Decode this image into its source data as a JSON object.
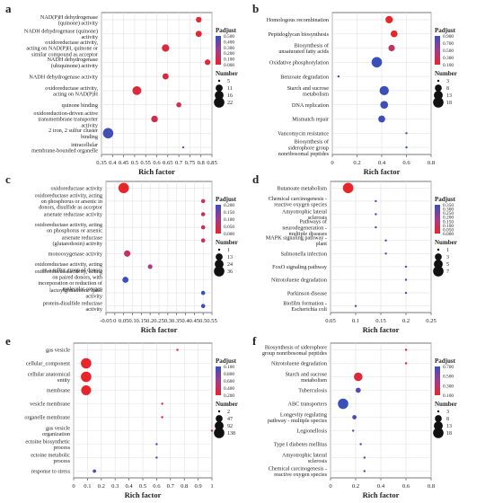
{
  "figure": {
    "panels_layout": [
      [
        "a",
        "b"
      ],
      [
        "c",
        "d"
      ],
      [
        "e",
        "f"
      ]
    ]
  },
  "chart_data": [
    {
      "panel": "a",
      "type": "scatter",
      "xlabel": "Rich factor",
      "xticks": [
        0.35,
        0.4,
        0.45,
        0.5,
        0.55,
        0.6,
        0.65,
        0.7,
        0.75,
        0.8,
        0.85
      ],
      "xtick_labels": [
        "0.35",
        "0.4",
        "0.45",
        "0.5",
        "0.55",
        "0.6",
        "0.65",
        "0.7",
        "0.75",
        "0.8",
        "0.85"
      ],
      "xlim": [
        0.35,
        0.85
      ],
      "categories": [
        "NAD(P)H dehydrogenase (quinone) activity",
        "NADH dehydrogenase (quinone) activity",
        "oxidoreductase activity, acting on NAD(P)H, quinone or similar compound as acceptor",
        "NADH dehydrogenase (ubiquinone) activity",
        "NADH dehydrogenase activity",
        "oxidoreductase activity, acting on NAD(P)H",
        "quinone binding",
        "oxidoreduction-driven active transmembrane transporter activity",
        "2 iron, 2 sulfur cluster binding",
        "intracellular membrane-bounded organelle"
      ],
      "points": [
        {
          "x": 0.79,
          "padj": 0.02,
          "number": 8
        },
        {
          "x": 0.79,
          "padj": 0.03,
          "number": 9
        },
        {
          "x": 0.64,
          "padj": 0.05,
          "number": 12
        },
        {
          "x": 0.83,
          "padj": 0.04,
          "number": 8
        },
        {
          "x": 0.64,
          "padj": 0.06,
          "number": 9
        },
        {
          "x": 0.51,
          "padj": 0.05,
          "number": 16
        },
        {
          "x": 0.7,
          "padj": 0.08,
          "number": 7
        },
        {
          "x": 0.59,
          "padj": 0.09,
          "number": 10
        },
        {
          "x": 0.38,
          "padj": 0.48,
          "number": 22
        },
        {
          "x": 0.72,
          "padj": 0.3,
          "number": 3
        }
      ],
      "legend": {
        "color_title": "Padjust",
        "color_ticks": [
          "0.500",
          "0.400",
          "0.300",
          "0.200",
          "0.100",
          "0.000"
        ],
        "color_range": [
          0,
          0.5
        ],
        "size_title": "Number",
        "size_values": [
          5,
          11,
          16,
          22
        ]
      }
    },
    {
      "panel": "b",
      "type": "scatter",
      "xlabel": "Rich factor",
      "xticks": [
        0,
        0.2,
        0.4,
        0.6,
        0.8
      ],
      "xtick_labels": [
        "0",
        "0.2",
        "0.4",
        "0.6",
        "0.8"
      ],
      "xlim": [
        0,
        0.8
      ],
      "categories": [
        "Homologous recombination",
        "Peptidoglycan biosynthesis",
        "Biosynthesis of unsaturated fatty acids",
        "Oxidative phosphorylation",
        "Benzoate degradation",
        "Starch and sucrose metabolism",
        "DNA replication",
        "Mismatch repair",
        "Vancomycin resistance",
        "Biosynthesis of siderophore group nonribosomal peptides"
      ],
      "points": [
        {
          "x": 0.46,
          "padj": 0.05,
          "number": 9
        },
        {
          "x": 0.5,
          "padj": 0.08,
          "number": 8
        },
        {
          "x": 0.48,
          "padj": 0.3,
          "number": 7
        },
        {
          "x": 0.36,
          "padj": 0.9,
          "number": 18
        },
        {
          "x": 0.05,
          "padj": 0.9,
          "number": 3
        },
        {
          "x": 0.42,
          "padj": 0.9,
          "number": 14
        },
        {
          "x": 0.42,
          "padj": 0.88,
          "number": 10
        },
        {
          "x": 0.4,
          "padj": 0.88,
          "number": 8
        },
        {
          "x": 0.6,
          "padj": 0.85,
          "number": 3
        },
        {
          "x": 0.6,
          "padj": 0.85,
          "number": 3
        }
      ],
      "legend": {
        "color_title": "Padjust",
        "color_ticks": [
          "0.900",
          "0.700",
          "0.500",
          "0.300",
          "0.100"
        ],
        "color_range": [
          0.1,
          0.9
        ],
        "size_title": "Number",
        "size_values": [
          3,
          8,
          13,
          18
        ]
      }
    },
    {
      "panel": "c",
      "type": "scatter",
      "xlabel": "Rich factor",
      "xticks": [
        -0.05,
        0,
        0.05,
        0.1,
        0.15,
        0.2,
        0.25,
        0.3,
        0.35,
        0.4,
        0.45,
        0.5,
        0.55
      ],
      "xtick_labels": [
        "-0.05",
        "0",
        "0.05",
        "0.1",
        "0.15",
        "0.2",
        "0.25",
        "0.3",
        "0.35",
        "0.4",
        "0.45",
        "0.5",
        "0.55"
      ],
      "xlim": [
        -0.05,
        0.55
      ],
      "categories": [
        "oxidoreductase activity",
        "oxidoreductase activity, acting on phosphorus or arsenic in donors, disulfide as acceptor",
        "arsenate reductase activity",
        "oxidoreductase activity, acting on phosphorus or arsenic",
        "arsenate reductase (glutaredoxin) activity",
        "monooxygenase activity",
        "oxidoreductase activity, acting on a sulfur group of donors",
        "oxidoreductase activity, acting on paired donors, with incorporation or reduction of molecular oxygen",
        "lactoylglutathione lyase activity",
        "protein-disulfide reductase activity"
      ],
      "points": [
        {
          "x": 0.05,
          "padj": 0.0,
          "number": 36
        },
        {
          "x": 0.5,
          "padj": 0.05,
          "number": 3
        },
        {
          "x": 0.5,
          "padj": 0.05,
          "number": 3
        },
        {
          "x": 0.5,
          "padj": 0.05,
          "number": 3
        },
        {
          "x": 0.5,
          "padj": 0.05,
          "number": 3
        },
        {
          "x": 0.07,
          "padj": 0.05,
          "number": 10
        },
        {
          "x": 0.2,
          "padj": 0.08,
          "number": 4
        },
        {
          "x": 0.06,
          "padj": 0.2,
          "number": 9
        },
        {
          "x": 0.5,
          "padj": 0.2,
          "number": 3
        },
        {
          "x": 0.5,
          "padj": 0.2,
          "number": 3
        }
      ],
      "legend": {
        "color_title": "Padjust",
        "color_ticks": [
          "0.200",
          "0.150",
          "0.100",
          "0.050",
          "0.000"
        ],
        "color_range": [
          0,
          0.2
        ],
        "size_title": "Number",
        "size_values": [
          1,
          13,
          24,
          36
        ]
      }
    },
    {
      "panel": "d",
      "type": "scatter",
      "xlabel": "Rich factor",
      "xticks": [
        0.05,
        0.1,
        0.15,
        0.2,
        0.25
      ],
      "xtick_labels": [
        "0.05",
        "0.1",
        "0.15",
        "0.2",
        "0.25"
      ],
      "xlim": [
        0.05,
        0.25
      ],
      "categories": [
        "Butanoate metabolism",
        "Chemical carcinogenesis - reactive oxygen species",
        "Amyotrophic lateral sclerosis",
        "Pathways of neurodegeneration - multiple diseases",
        "MAPK signaling pathway - plant",
        "Salmonella infection",
        "FoxO signaling pathway",
        "Nitrotoluene degradation",
        "Parkinson disease",
        "Biofilm formation - Escherichia coli"
      ],
      "points": [
        {
          "x": 0.085,
          "padj": 0.0,
          "number": 7
        },
        {
          "x": 0.14,
          "padj": 0.33,
          "number": 1
        },
        {
          "x": 0.14,
          "padj": 0.33,
          "number": 1
        },
        {
          "x": 0.14,
          "padj": 0.33,
          "number": 1
        },
        {
          "x": 0.16,
          "padj": 0.33,
          "number": 1
        },
        {
          "x": 0.16,
          "padj": 0.33,
          "number": 1
        },
        {
          "x": 0.2,
          "padj": 0.33,
          "number": 1
        },
        {
          "x": 0.2,
          "padj": 0.33,
          "number": 1
        },
        {
          "x": 0.2,
          "padj": 0.33,
          "number": 1
        },
        {
          "x": 0.1,
          "padj": 0.33,
          "number": 1
        }
      ],
      "legend": {
        "color_title": "Padjust",
        "color_ticks": [
          "0.350",
          "0.300",
          "0.250",
          "0.200",
          "0.150",
          "0.100",
          "0.050",
          "0.000"
        ],
        "color_range": [
          0,
          0.35
        ],
        "size_title": "Number",
        "size_values": [
          1,
          3,
          5,
          7
        ]
      }
    },
    {
      "panel": "e",
      "type": "scatter",
      "xlabel": "Rich factor",
      "xticks": [
        0,
        0.1,
        0.2,
        0.3,
        0.4,
        0.5,
        0.6,
        0.7,
        0.8,
        0.9,
        1
      ],
      "xtick_labels": [
        "0",
        "0.1",
        "0.2",
        "0.3",
        "0.4",
        "0.5",
        "0.6",
        "0.7",
        "0.8",
        "0.9",
        "1"
      ],
      "xlim": [
        0,
        1
      ],
      "categories": [
        "gas vesicle",
        "cellular_component",
        "cellular anatomical entity",
        "membrane",
        "vesicle membrane",
        "organelle membrane",
        "gas vesicle organization",
        "ectoine biosynthetic process",
        "ectoine metabolic process",
        "response to stress"
      ],
      "points": [
        {
          "x": 0.75,
          "padj": 0.02,
          "number": 2
        },
        {
          "x": 0.09,
          "padj": 0.01,
          "number": 138
        },
        {
          "x": 0.09,
          "padj": 0.01,
          "number": 138
        },
        {
          "x": 0.09,
          "padj": 0.01,
          "number": 120
        },
        {
          "x": 0.64,
          "padj": 0.05,
          "number": 2
        },
        {
          "x": 0.64,
          "padj": 0.05,
          "number": 2
        },
        {
          "x": 1.0,
          "padj": 0.06,
          "number": 2
        },
        {
          "x": 0.6,
          "padj": 0.9,
          "number": 2
        },
        {
          "x": 0.6,
          "padj": 0.9,
          "number": 2
        },
        {
          "x": 0.15,
          "padj": 0.9,
          "number": 5
        }
      ],
      "legend": {
        "color_title": "Padjust",
        "color_ticks": [
          "0.100",
          "0.800",
          "0.600",
          "0.400",
          "0.200"
        ],
        "color_range": [
          0,
          1
        ],
        "size_title": "Number",
        "size_values": [
          2,
          47,
          92,
          138
        ]
      }
    },
    {
      "panel": "f",
      "type": "scatter",
      "xlabel": "Rich factor",
      "xticks": [
        0,
        0.2,
        0.4,
        0.6,
        0.8
      ],
      "xtick_labels": [
        "0",
        "0.2",
        "0.4",
        "0.6",
        "0.8"
      ],
      "xlim": [
        0,
        0.8
      ],
      "categories": [
        "Biosynthesis of siderophore group nonribosomal peptides",
        "Nitrotoluene degradation",
        "Starch and sucrose metabolism",
        "Tuberculosis",
        "ABC transporters",
        "Longevity regulating pathway - multiple species",
        "Legionellosis",
        "Type I diabetes mellitus",
        "Amyotrophic lateral sclerosis",
        "Chemical carcinogenesis - reactive oxygen species"
      ],
      "points": [
        {
          "x": 0.6,
          "padj": 0.05,
          "number": 3
        },
        {
          "x": 0.6,
          "padj": 0.05,
          "number": 3
        },
        {
          "x": 0.22,
          "padj": 0.1,
          "number": 12
        },
        {
          "x": 0.22,
          "padj": 0.6,
          "number": 5
        },
        {
          "x": 0.1,
          "padj": 0.7,
          "number": 18
        },
        {
          "x": 0.19,
          "padj": 0.65,
          "number": 4
        },
        {
          "x": 0.18,
          "padj": 0.65,
          "number": 3
        },
        {
          "x": 0.24,
          "padj": 0.65,
          "number": 3
        },
        {
          "x": 0.27,
          "padj": 0.65,
          "number": 3
        },
        {
          "x": 0.27,
          "padj": 0.65,
          "number": 3
        }
      ],
      "legend": {
        "color_title": "Padjust",
        "color_ticks": [
          "0.700",
          "0.500",
          "0.300",
          "0.100"
        ],
        "color_range": [
          0.05,
          0.7
        ],
        "size_title": "Number",
        "size_values": [
          3,
          8,
          13,
          18
        ]
      }
    }
  ]
}
